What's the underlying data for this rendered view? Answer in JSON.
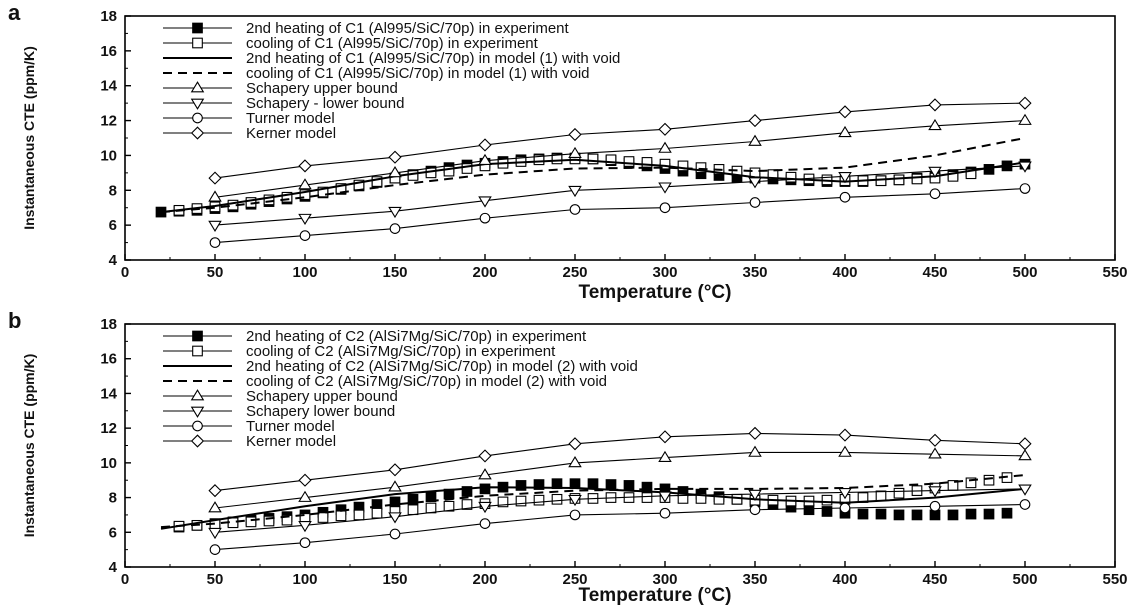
{
  "chart_data": [
    {
      "type": "line",
      "panel_label": "a",
      "xlabel": "Temperature (°C)",
      "ylabel": "Instantaneous CTE (ppm/K)",
      "xlim": [
        0,
        550
      ],
      "ylim": [
        4,
        18
      ],
      "xticks": [
        0,
        50,
        100,
        150,
        200,
        250,
        300,
        350,
        400,
        450,
        500,
        550
      ],
      "yticks": [
        4,
        6,
        8,
        10,
        12,
        14,
        16,
        18
      ],
      "legend_position": "top-left",
      "series": [
        {
          "name": "2nd heating of C1 (Al995/SiC/70p) in experiment",
          "marker": "filled-square",
          "style": "markers",
          "x": [
            20,
            30,
            40,
            50,
            60,
            70,
            80,
            90,
            100,
            110,
            120,
            130,
            140,
            150,
            160,
            170,
            180,
            190,
            200,
            210,
            220,
            230,
            240,
            250,
            260,
            270,
            280,
            290,
            300,
            310,
            320,
            330,
            340,
            350,
            360,
            370,
            380,
            390,
            400,
            410,
            420,
            430,
            440,
            450,
            460,
            470,
            480,
            490,
            500
          ],
          "y": [
            6.75,
            6.8,
            6.85,
            6.95,
            7.05,
            7.2,
            7.35,
            7.5,
            7.65,
            7.85,
            8.05,
            8.25,
            8.45,
            8.7,
            8.9,
            9.1,
            9.3,
            9.45,
            9.55,
            9.65,
            9.75,
            9.8,
            9.85,
            9.85,
            9.8,
            9.7,
            9.55,
            9.4,
            9.25,
            9.1,
            8.95,
            8.85,
            8.75,
            8.7,
            8.65,
            8.6,
            8.55,
            8.5,
            8.5,
            8.5,
            8.55,
            8.6,
            8.7,
            8.8,
            8.9,
            9.05,
            9.2,
            9.4,
            9.5
          ]
        },
        {
          "name": "cooling of C1 (Al995/SiC/70p) in experiment",
          "marker": "open-square",
          "style": "markers",
          "x": [
            30,
            40,
            50,
            60,
            70,
            80,
            90,
            100,
            110,
            120,
            130,
            140,
            150,
            160,
            170,
            180,
            190,
            200,
            210,
            220,
            230,
            240,
            250,
            260,
            270,
            280,
            290,
            300,
            310,
            320,
            330,
            340,
            350,
            360,
            370,
            380,
            390,
            400,
            410,
            420,
            430,
            440,
            450,
            460,
            470
          ],
          "y": [
            6.85,
            6.95,
            7.05,
            7.15,
            7.3,
            7.45,
            7.6,
            7.75,
            7.9,
            8.1,
            8.3,
            8.5,
            8.7,
            8.85,
            9.0,
            9.1,
            9.25,
            9.4,
            9.55,
            9.65,
            9.75,
            9.8,
            9.8,
            9.8,
            9.75,
            9.65,
            9.6,
            9.5,
            9.4,
            9.3,
            9.2,
            9.1,
            9.0,
            8.9,
            8.75,
            8.65,
            8.6,
            8.55,
            8.55,
            8.55,
            8.6,
            8.65,
            8.7,
            8.8,
            8.95
          ]
        },
        {
          "name": "2nd heating of C1 (Al995/SiC/70p) in model (1) with void",
          "marker": "none",
          "style": "solid",
          "x": [
            20,
            50,
            100,
            150,
            200,
            250,
            300,
            350,
            400,
            450,
            500
          ],
          "y": [
            6.75,
            7.1,
            7.9,
            8.8,
            9.5,
            9.75,
            9.4,
            8.75,
            8.5,
            8.8,
            9.6
          ]
        },
        {
          "name": "cooling of C1 (Al995/SiC/70p) in model (1) with void",
          "marker": "none",
          "style": "dashed",
          "x": [
            20,
            50,
            100,
            150,
            200,
            250,
            300,
            350,
            400,
            450,
            500
          ],
          "y": [
            6.75,
            7.0,
            7.6,
            8.3,
            8.9,
            9.25,
            9.3,
            9.1,
            9.3,
            10.0,
            11.0
          ]
        },
        {
          "name": "Schapery upper bound",
          "marker": "open-triangle-up",
          "style": "solid",
          "x": [
            50,
            100,
            150,
            200,
            250,
            300,
            350,
            400,
            450,
            500
          ],
          "y": [
            7.6,
            8.3,
            9.0,
            9.7,
            10.1,
            10.4,
            10.8,
            11.3,
            11.7,
            12.0
          ]
        },
        {
          "name": "Schapery - lower bound",
          "marker": "open-triangle-down",
          "style": "solid",
          "x": [
            50,
            100,
            150,
            200,
            250,
            300,
            350,
            400,
            450,
            500
          ],
          "y": [
            6.0,
            6.4,
            6.8,
            7.4,
            8.0,
            8.2,
            8.5,
            8.8,
            9.1,
            9.4
          ]
        },
        {
          "name": "Turner model",
          "marker": "open-circle",
          "style": "solid",
          "x": [
            50,
            100,
            150,
            200,
            250,
            300,
            350,
            400,
            450,
            500
          ],
          "y": [
            5.0,
            5.4,
            5.8,
            6.4,
            6.9,
            7.0,
            7.3,
            7.6,
            7.8,
            8.1
          ]
        },
        {
          "name": "Kerner model",
          "marker": "open-diamond",
          "style": "solid",
          "x": [
            50,
            100,
            150,
            200,
            250,
            300,
            350,
            400,
            450,
            500
          ],
          "y": [
            8.7,
            9.4,
            9.9,
            10.6,
            11.2,
            11.5,
            12.0,
            12.5,
            12.9,
            13.0
          ]
        }
      ]
    },
    {
      "type": "line",
      "panel_label": "b",
      "xlabel": "Temperature (°C)",
      "ylabel": "Instantaneous CTE (ppm/K)",
      "xlim": [
        0,
        550
      ],
      "ylim": [
        4,
        18
      ],
      "xticks": [
        0,
        50,
        100,
        150,
        200,
        250,
        300,
        350,
        400,
        450,
        500,
        550
      ],
      "yticks": [
        4,
        6,
        8,
        10,
        12,
        14,
        16,
        18
      ],
      "legend_position": "top-left",
      "series": [
        {
          "name": "2nd heating of C2 (AlSi7Mg/SiC/70p) in experiment",
          "marker": "filled-square",
          "style": "markers",
          "x": [
            30,
            40,
            50,
            60,
            70,
            80,
            90,
            100,
            110,
            120,
            130,
            140,
            150,
            160,
            170,
            180,
            190,
            200,
            210,
            220,
            230,
            240,
            250,
            260,
            270,
            280,
            290,
            300,
            310,
            320,
            330,
            340,
            350,
            360,
            370,
            380,
            390,
            400,
            410,
            420,
            430,
            440,
            450,
            460,
            470,
            480,
            490
          ],
          "y": [
            6.3,
            6.4,
            6.5,
            6.6,
            6.7,
            6.8,
            6.9,
            7.0,
            7.15,
            7.3,
            7.45,
            7.6,
            7.75,
            7.9,
            8.05,
            8.2,
            8.35,
            8.5,
            8.6,
            8.7,
            8.75,
            8.8,
            8.8,
            8.8,
            8.75,
            8.7,
            8.6,
            8.5,
            8.35,
            8.2,
            8.05,
            7.9,
            7.75,
            7.6,
            7.45,
            7.3,
            7.2,
            7.1,
            7.05,
            7.05,
            7.0,
            7.0,
            7.0,
            7.0,
            7.05,
            7.05,
            7.1
          ]
        },
        {
          "name": "cooling of C2 (AlSi7Mg/SiC/70p) in experiment",
          "marker": "open-square",
          "style": "markers",
          "x": [
            30,
            40,
            50,
            60,
            70,
            80,
            90,
            100,
            110,
            120,
            130,
            140,
            150,
            160,
            170,
            180,
            190,
            200,
            210,
            220,
            230,
            240,
            250,
            260,
            270,
            280,
            290,
            300,
            310,
            320,
            330,
            340,
            350,
            360,
            370,
            380,
            390,
            400,
            410,
            420,
            430,
            440,
            450,
            460,
            470,
            480,
            490
          ],
          "y": [
            6.35,
            6.4,
            6.45,
            6.55,
            6.6,
            6.65,
            6.7,
            6.8,
            6.85,
            6.95,
            7.0,
            7.1,
            7.2,
            7.3,
            7.4,
            7.5,
            7.6,
            7.65,
            7.75,
            7.8,
            7.85,
            7.9,
            7.95,
            7.95,
            8.0,
            8.0,
            8.0,
            8.0,
            7.95,
            7.95,
            7.9,
            7.9,
            7.85,
            7.85,
            7.8,
            7.8,
            7.85,
            7.9,
            8.0,
            8.1,
            8.25,
            8.4,
            8.55,
            8.7,
            8.85,
            9.0,
            9.15
          ]
        },
        {
          "name": "2nd heating of C2 (AlSi7Mg/SiC/70p) in model (2) with void",
          "marker": "none",
          "style": "solid",
          "x": [
            20,
            50,
            100,
            150,
            200,
            250,
            300,
            350,
            400,
            450,
            500
          ],
          "y": [
            6.2,
            6.7,
            7.5,
            8.2,
            8.6,
            8.55,
            8.3,
            7.9,
            7.7,
            8.0,
            8.5
          ]
        },
        {
          "name": "cooling of C2 (AlSi7Mg/SiC/70p) in model (2) with void",
          "marker": "none",
          "style": "dashed",
          "x": [
            20,
            50,
            100,
            150,
            200,
            250,
            300,
            350,
            400,
            450,
            500
          ],
          "y": [
            6.3,
            6.5,
            7.0,
            7.6,
            8.1,
            8.4,
            8.5,
            8.5,
            8.55,
            8.8,
            9.3
          ]
        },
        {
          "name": "Schapery upper bound",
          "marker": "open-triangle-up",
          "style": "solid",
          "x": [
            50,
            100,
            150,
            200,
            250,
            300,
            350,
            400,
            450,
            500
          ],
          "y": [
            7.4,
            8.0,
            8.6,
            9.3,
            10.0,
            10.3,
            10.6,
            10.6,
            10.5,
            10.4
          ]
        },
        {
          "name": "Schapery lower bound",
          "marker": "open-triangle-down",
          "style": "solid",
          "x": [
            50,
            100,
            150,
            200,
            250,
            300,
            350,
            400,
            450,
            500
          ],
          "y": [
            6.0,
            6.4,
            6.9,
            7.5,
            7.9,
            8.1,
            8.2,
            8.3,
            8.4,
            8.5
          ]
        },
        {
          "name": "Turner model",
          "marker": "open-circle",
          "style": "solid",
          "x": [
            50,
            100,
            150,
            200,
            250,
            300,
            350,
            400,
            450,
            500
          ],
          "y": [
            5.0,
            5.4,
            5.9,
            6.5,
            7.0,
            7.1,
            7.3,
            7.4,
            7.5,
            7.6
          ]
        },
        {
          "name": "Kerner model",
          "marker": "open-diamond",
          "style": "solid",
          "x": [
            50,
            100,
            150,
            200,
            250,
            300,
            350,
            400,
            450,
            500
          ],
          "y": [
            8.4,
            9.0,
            9.6,
            10.4,
            11.1,
            11.5,
            11.7,
            11.6,
            11.3,
            11.1
          ]
        }
      ]
    }
  ]
}
